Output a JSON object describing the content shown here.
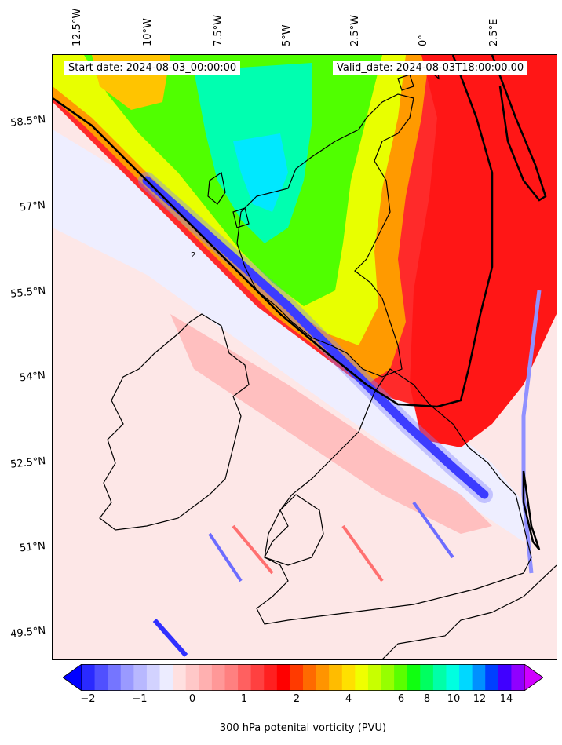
{
  "header": {
    "start_date": "Start date: 2024-08-03_00:00:00",
    "valid_date": "Valid_date: 2024-08-03T18:00:00.00"
  },
  "axes": {
    "lon_labels": [
      "12.5°W",
      "10°W",
      "7.5°W",
      "5°W",
      "2.5°W",
      "0°",
      "2.5°E"
    ],
    "lat_labels": [
      "58.5°N",
      "57°N",
      "55.5°N",
      "54°N",
      "52.5°N",
      "51°N",
      "49.5°N"
    ]
  },
  "colorbar": {
    "label": "300 hPa potenital vorticity (PVU)",
    "ticks": [
      "−2",
      "−1",
      "0",
      "1",
      "2",
      "4",
      "6",
      "8",
      "10",
      "12",
      "14"
    ],
    "colors": [
      "#0000ff",
      "#2a2aff",
      "#5050ff",
      "#7575ff",
      "#9a9aff",
      "#b8b8ff",
      "#d2d2ff",
      "#ececff",
      "#ffe0e0",
      "#ffc8c8",
      "#ffb0b0",
      "#ff9898",
      "#ff8080",
      "#ff6060",
      "#ff4040",
      "#ff2020",
      "#ff0000",
      "#ff3a00",
      "#ff6a00",
      "#ff9400",
      "#ffbc00",
      "#ffe000",
      "#f0ff00",
      "#c8ff00",
      "#96ff00",
      "#5aff00",
      "#10ff10",
      "#00ff60",
      "#00ffa8",
      "#00ffe0",
      "#00d8ff",
      "#0090ff",
      "#0040ff",
      "#4000ff",
      "#9000ff",
      "#d000ff"
    ],
    "contour_label": "2"
  }
}
